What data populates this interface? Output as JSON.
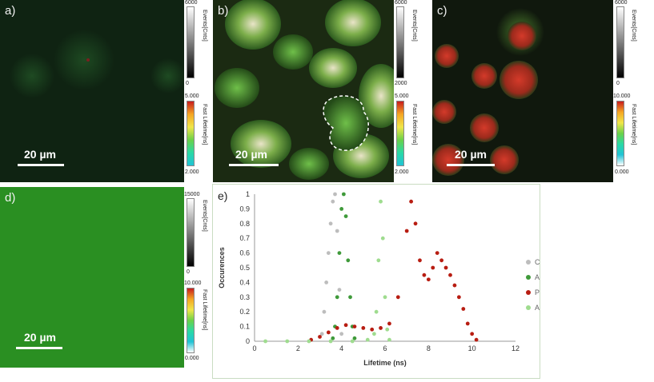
{
  "panels": {
    "a": {
      "label": "a)",
      "scalebar": "20 µm"
    },
    "b": {
      "label": "b)",
      "scalebar": "20 µm"
    },
    "c": {
      "label": "c)",
      "scalebar": "20 µm"
    },
    "d": {
      "label": "d)",
      "scalebar": "20 µm"
    },
    "e": {
      "label": "e)"
    }
  },
  "colorbars": {
    "ab_events": {
      "title": "Events[Cnts]",
      "max": "6000",
      "min": "0"
    },
    "ab_lifetime": {
      "title": "Fast Lifetime[ns]",
      "max": "5.000",
      "min": "2.000"
    },
    "bc_events": {
      "title": "Events[Cnts]",
      "max": "6000",
      "min": "2000"
    },
    "bc_lifetime": {
      "title": "Fast Lifetime[ns]",
      "max": "5.000",
      "min": "2.000"
    },
    "c_events": {
      "title": "Events[Cnts]",
      "max": "6000",
      "min": "0"
    },
    "c_lifetime": {
      "title": "Fast Lifetime[ns]",
      "max": "10.000",
      "min": "0.000"
    },
    "d_events": {
      "title": "Events[Cnts]",
      "max": "15000",
      "min": "0"
    },
    "d_lifetime": {
      "title": "Fast Lifetime[ns]",
      "max": "10.000",
      "min": "0.000"
    }
  },
  "chart_data": {
    "type": "scatter",
    "xlabel": "Lifetime (ns)",
    "ylabel": "Occurences",
    "xlim": [
      0,
      12
    ],
    "ylim": [
      0,
      1
    ],
    "xticks": [
      "0",
      "2",
      "4",
      "6",
      "8",
      "10",
      "12"
    ],
    "yticks": [
      "0",
      "0.1",
      "0.2",
      "0.3",
      "0.4",
      "0.5",
      "0.6",
      "0.7",
      "0.8",
      "0.9",
      "1"
    ],
    "legend_position": "right",
    "series": [
      {
        "name": "Cells",
        "color": "#bdbdbd",
        "x": [
          3.1,
          3.2,
          3.3,
          3.4,
          3.5,
          3.6,
          3.7,
          3.8,
          3.9,
          4.0
        ],
        "y": [
          0.05,
          0.2,
          0.4,
          0.6,
          0.8,
          0.95,
          1.0,
          0.75,
          0.35,
          0.05
        ]
      },
      {
        "name": "AcriPyMe_Cells",
        "color": "#3f9a3a",
        "x": [
          3.6,
          3.7,
          3.8,
          3.9,
          4.0,
          4.1,
          4.2,
          4.3,
          4.4,
          4.5,
          4.6
        ],
        "y": [
          0.02,
          0.1,
          0.3,
          0.6,
          0.9,
          1.0,
          0.85,
          0.55,
          0.3,
          0.1,
          0.02
        ]
      },
      {
        "name": "PI_cells",
        "color": "#b81d12",
        "x": [
          2.6,
          3.0,
          3.4,
          3.8,
          4.2,
          4.6,
          5.0,
          5.4,
          5.8,
          6.2,
          6.6,
          7.0,
          7.2,
          7.4,
          7.6,
          7.8,
          8.0,
          8.2,
          8.4,
          8.6,
          8.8,
          9.0,
          9.2,
          9.4,
          9.6,
          9.8,
          10.0,
          10.2
        ],
        "y": [
          0.01,
          0.03,
          0.06,
          0.09,
          0.11,
          0.1,
          0.09,
          0.08,
          0.09,
          0.12,
          0.3,
          0.75,
          0.95,
          0.8,
          0.55,
          0.45,
          0.42,
          0.5,
          0.6,
          0.55,
          0.5,
          0.45,
          0.38,
          0.3,
          0.22,
          0.12,
          0.05,
          0.01
        ]
      },
      {
        "name": "AcriPyMe_Medium",
        "color": "#9fdc8f",
        "x": [
          0.5,
          1.5,
          2.5,
          3.5,
          4.5,
          5.2,
          5.5,
          5.6,
          5.7,
          5.8,
          5.9,
          6.0,
          6.1,
          6.2
        ],
        "y": [
          0.0,
          0.0,
          0.0,
          0.0,
          0.0,
          0.01,
          0.05,
          0.2,
          0.55,
          0.95,
          0.7,
          0.3,
          0.08,
          0.01
        ]
      }
    ]
  }
}
